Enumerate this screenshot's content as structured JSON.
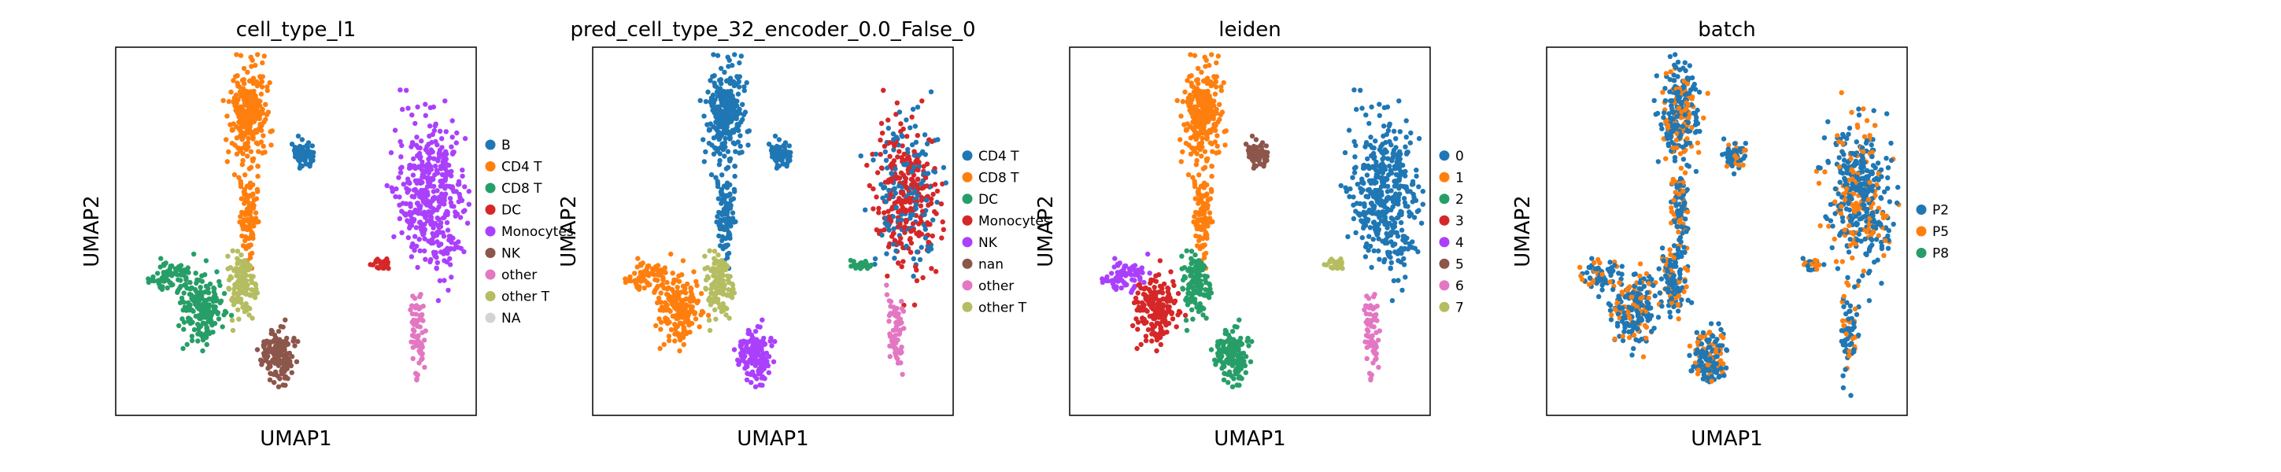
{
  "chart_data": [
    {
      "type": "scatter",
      "title": "cell_type_l1",
      "xlabel": "UMAP1",
      "ylabel": "UMAP2",
      "categories": [
        "B",
        "CD4 T",
        "CD8 T",
        "DC",
        "Monocytes",
        "NK",
        "other",
        "other T",
        "NA"
      ],
      "colors": [
        "#1f77b4",
        "#ff7f0e",
        "#279e68",
        "#d62728",
        "#aa40fc",
        "#8c564b",
        "#e377c2",
        "#b5bd61",
        "#d3d3d3"
      ],
      "grid": false,
      "legend": "right",
      "ticks": false
    },
    {
      "type": "scatter",
      "title": "pred_cell_type_32_encoder_0.0_False_0",
      "xlabel": "UMAP1",
      "ylabel": "UMAP2",
      "categories": [
        "CD4 T",
        "CD8 T",
        "DC",
        "Monocytes",
        "NK",
        "nan",
        "other",
        "other T"
      ],
      "colors": [
        "#1f77b4",
        "#ff7f0e",
        "#279e68",
        "#d62728",
        "#aa40fc",
        "#8c564b",
        "#e377c2",
        "#b5bd61"
      ],
      "grid": false,
      "legend": "right",
      "ticks": false
    },
    {
      "type": "scatter",
      "title": "leiden",
      "xlabel": "UMAP1",
      "ylabel": "UMAP2",
      "categories": [
        "0",
        "1",
        "2",
        "3",
        "4",
        "5",
        "6",
        "7"
      ],
      "colors": [
        "#1f77b4",
        "#ff7f0e",
        "#279e68",
        "#d62728",
        "#aa40fc",
        "#8c564b",
        "#e377c2",
        "#b5bd61"
      ],
      "grid": false,
      "legend": "right",
      "ticks": false
    },
    {
      "type": "scatter",
      "title": "batch",
      "xlabel": "UMAP1",
      "ylabel": "UMAP2",
      "categories": [
        "P2",
        "P5",
        "P8"
      ],
      "colors": [
        "#1f77b4",
        "#ff7f0e",
        "#279e68"
      ],
      "grid": false,
      "legend": "right",
      "ticks": false
    }
  ]
}
